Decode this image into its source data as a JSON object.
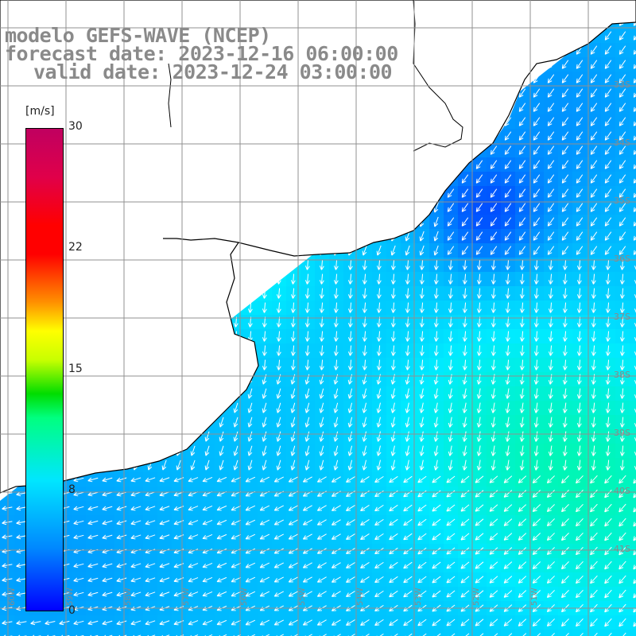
{
  "title": {
    "line1": "modelo GEFS-WAVE (NCEP)",
    "line2": "forecast date: 2023-12-16 06:00:00",
    "line3": "valid date: 2023-12-24 03:00:00"
  },
  "colorbar": {
    "unit": "[m/s]",
    "ticks": [
      "30",
      "22",
      "15",
      "8",
      "0"
    ],
    "tick_values": [
      30,
      22,
      15,
      8,
      0
    ],
    "colors": [
      "#0000ff",
      "#00e6ff",
      "#00dd00",
      "#ffff00",
      "#ff0000",
      "#c00060"
    ]
  },
  "grid": {
    "lat_labels": [
      "33S",
      "34S",
      "35S",
      "36S",
      "37S",
      "38S",
      "39S",
      "40S",
      "41S"
    ],
    "lon_labels": [
      "60W",
      "59W",
      "58W",
      "57W",
      "56W",
      "55W",
      "54W",
      "53W",
      "52W",
      "51W"
    ]
  },
  "legend": {
    "arrow_color": "#ffffff",
    "land_color": "#ffffff",
    "coast_color": "#000000",
    "grid_color": "#909090"
  }
}
